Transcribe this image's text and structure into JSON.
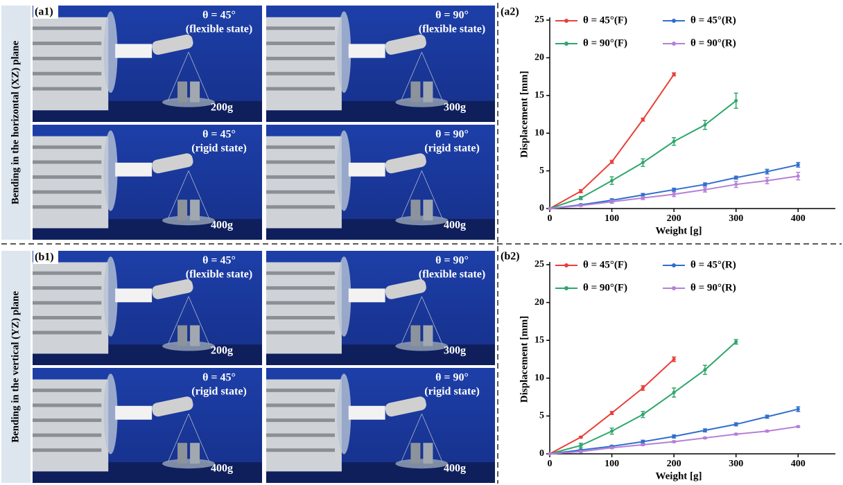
{
  "panels": [
    {
      "label": "(a1)",
      "side_label": "Bending in the horizontal (XZ) plane",
      "photos": [
        {
          "angle": "θ = 45°",
          "state": "(flexible state)",
          "weight": "200g"
        },
        {
          "angle": "θ = 90°",
          "state": "(flexible state)",
          "weight": "300g"
        },
        {
          "angle": "θ = 45°",
          "state": "(rigid state)",
          "weight": "400g"
        },
        {
          "angle": "θ = 90°",
          "state": "(rigid state)",
          "weight": "400g"
        }
      ]
    },
    {
      "label": "(b1)",
      "side_label": "Bending in the vertical (YZ) plane",
      "photos": [
        {
          "angle": "θ = 45°",
          "state": "(flexible state)",
          "weight": "200g"
        },
        {
          "angle": "θ = 90°",
          "state": "(flexible state)",
          "weight": "300g"
        },
        {
          "angle": "θ = 45°",
          "state": "(rigid state)",
          "weight": "400g"
        },
        {
          "angle": "θ = 90°",
          "state": "(rigid state)",
          "weight": "400g"
        }
      ]
    }
  ],
  "chart_data": [
    {
      "type": "line",
      "panel_label": "(a2)",
      "x_label": "Weight [g]",
      "y_label": "Displacement [mm]",
      "xlim": [
        0,
        460
      ],
      "ylim": [
        0,
        25
      ],
      "xticks": [
        0,
        100,
        200,
        300,
        400
      ],
      "yticks": [
        0,
        5,
        10,
        15,
        20,
        25
      ],
      "legend": "upper left",
      "series": [
        {
          "name": "θ = 45°(F)",
          "color": "#e8403a",
          "x": [
            0,
            50,
            100,
            150,
            200
          ],
          "values": [
            0,
            2.3,
            6.2,
            11.8,
            17.8
          ],
          "errors": [
            0,
            0.2,
            0.2,
            0.2,
            0.2
          ]
        },
        {
          "name": "θ = 45°(R)",
          "color": "#2f6fcc",
          "x": [
            0,
            50,
            100,
            150,
            200,
            250,
            300,
            350,
            400
          ],
          "values": [
            0,
            0.5,
            1.1,
            1.8,
            2.5,
            3.2,
            4.1,
            4.9,
            5.8
          ],
          "errors": [
            0,
            0.1,
            0.2,
            0.2,
            0.2,
            0.2,
            0.2,
            0.3,
            0.3
          ]
        },
        {
          "name": "θ = 90°(F)",
          "color": "#2ea66b",
          "x": [
            0,
            50,
            100,
            150,
            200,
            250,
            300
          ],
          "values": [
            0,
            1.4,
            3.7,
            6.1,
            8.9,
            11.1,
            14.3
          ],
          "errors": [
            0,
            0.2,
            0.5,
            0.5,
            0.5,
            0.6,
            1.0
          ]
        },
        {
          "name": "θ = 90°(R)",
          "color": "#b57fd8",
          "x": [
            0,
            50,
            100,
            150,
            200,
            250,
            300,
            350,
            400
          ],
          "values": [
            0,
            0.4,
            0.9,
            1.4,
            1.9,
            2.5,
            3.2,
            3.7,
            4.3
          ],
          "errors": [
            0,
            0.1,
            0.2,
            0.2,
            0.3,
            0.3,
            0.4,
            0.4,
            0.5
          ]
        }
      ]
    },
    {
      "type": "line",
      "panel_label": "(b2)",
      "x_label": "Weight [g]",
      "y_label": "Displacement [mm]",
      "xlim": [
        0,
        460
      ],
      "ylim": [
        0,
        25
      ],
      "xticks": [
        0,
        100,
        200,
        300,
        400
      ],
      "yticks": [
        0,
        5,
        10,
        15,
        20,
        25
      ],
      "legend": "upper left",
      "series": [
        {
          "name": "θ = 45°(F)",
          "color": "#e8403a",
          "x": [
            0,
            50,
            100,
            150,
            200
          ],
          "values": [
            0,
            2.2,
            5.4,
            8.7,
            12.5
          ],
          "errors": [
            0,
            0.1,
            0.2,
            0.3,
            0.3
          ]
        },
        {
          "name": "θ = 45°(R)",
          "color": "#2f6fcc",
          "x": [
            0,
            50,
            100,
            150,
            200,
            250,
            300,
            350,
            400
          ],
          "values": [
            0,
            0.5,
            1.0,
            1.6,
            2.3,
            3.1,
            3.9,
            4.9,
            5.9
          ],
          "errors": [
            0,
            0.1,
            0.1,
            0.2,
            0.2,
            0.2,
            0.2,
            0.2,
            0.3
          ]
        },
        {
          "name": "θ = 90°(F)",
          "color": "#2ea66b",
          "x": [
            0,
            50,
            100,
            150,
            200,
            250,
            300
          ],
          "values": [
            0,
            1.1,
            3.0,
            5.2,
            8.1,
            11.1,
            14.8
          ],
          "errors": [
            0,
            0.3,
            0.4,
            0.4,
            0.6,
            0.6,
            0.3
          ]
        },
        {
          "name": "θ = 90°(R)",
          "color": "#b57fd8",
          "x": [
            0,
            50,
            100,
            150,
            200,
            250,
            300,
            350,
            400
          ],
          "values": [
            0,
            0.3,
            0.8,
            1.2,
            1.6,
            2.1,
            2.6,
            3.0,
            3.6
          ],
          "errors": [
            0,
            0.1,
            0.1,
            0.1,
            0.1,
            0.1,
            0.1,
            0.1,
            0.1
          ]
        }
      ]
    }
  ]
}
